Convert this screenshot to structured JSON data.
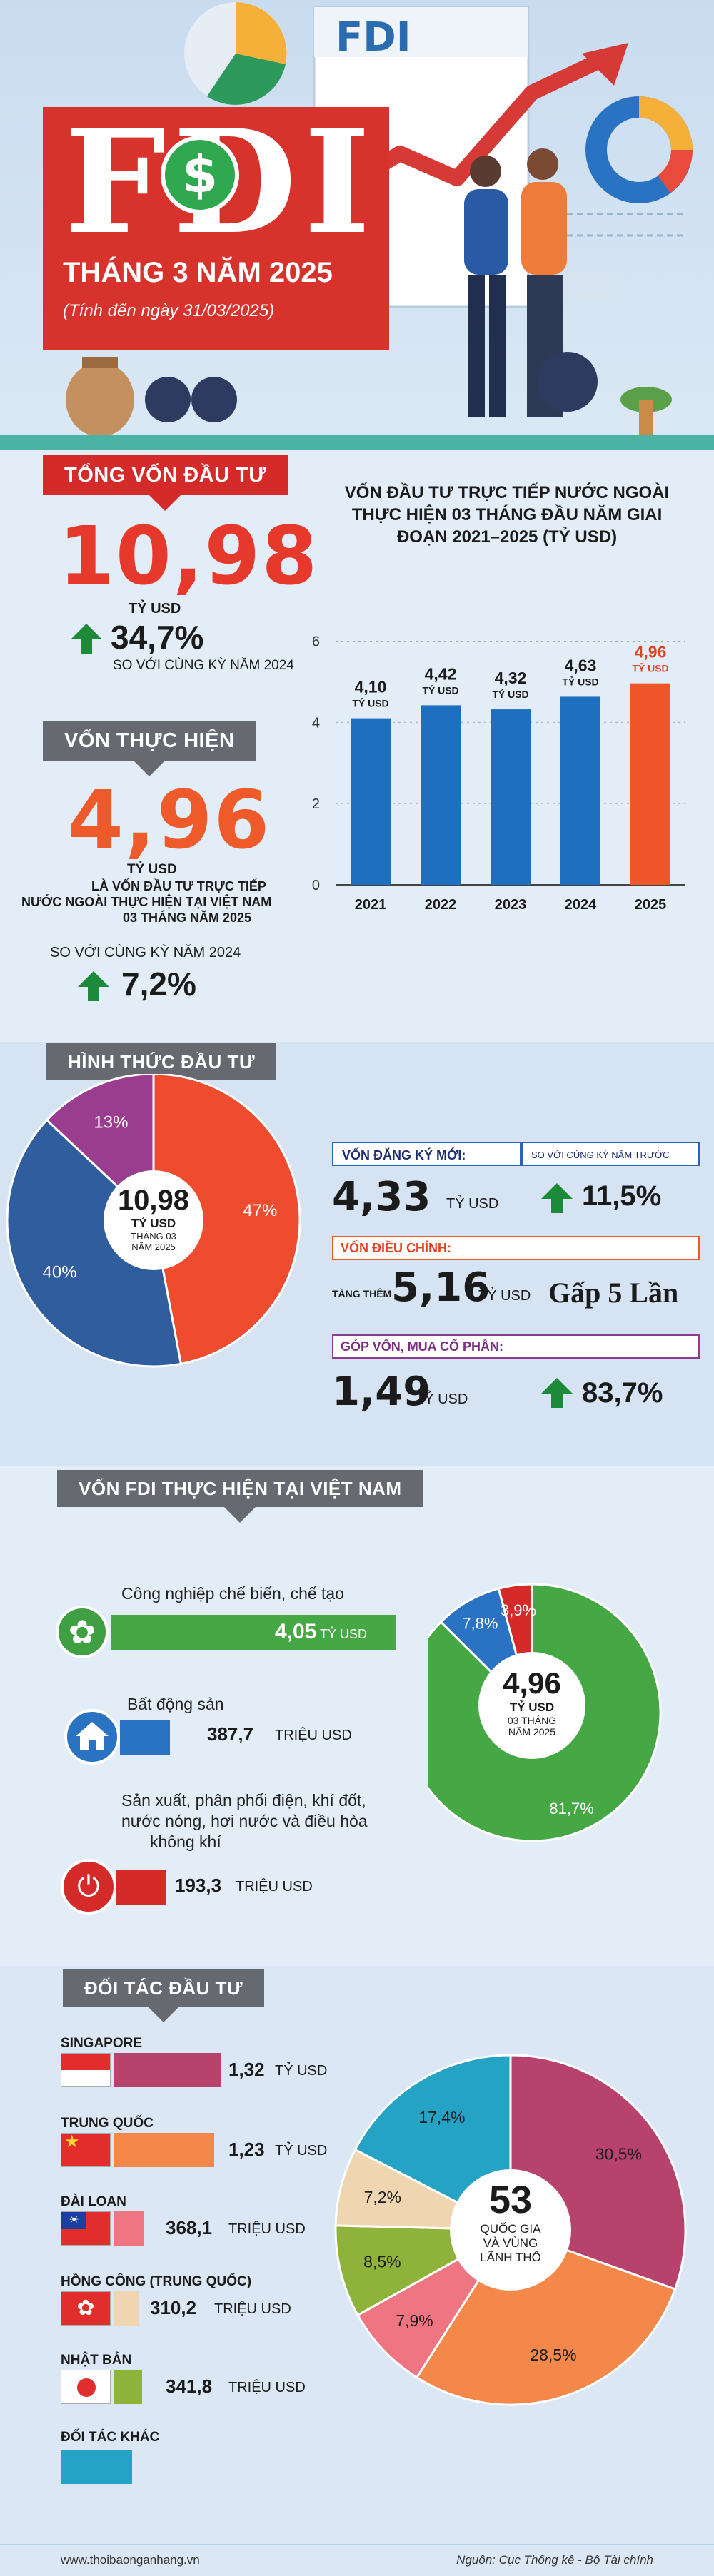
{
  "hero": {
    "title": "FDI",
    "subtitle": "THÁNG 3 NĂM 2025",
    "note": "(Tính đến ngày 31/03/2025)",
    "board_label": "FDI"
  },
  "total": {
    "heading": "TỔNG VỐN ĐẦU TƯ",
    "value": "10,98",
    "unit": "TỶ USD",
    "growth": "34,7%",
    "compare": "SO VỚI CÙNG KỲ NĂM 2024"
  },
  "disbursed": {
    "heading": "VỐN THỰC HIỆN",
    "value": "4,96",
    "unit": "TỶ USD",
    "desc1": "LÀ VỐN ĐẦU TƯ TRỰC TIẾP",
    "desc2": "NƯỚC NGOÀI THỰC HIỆN TẠI VIỆT NAM",
    "desc3": "03 THÁNG NĂM 2025",
    "compare": "SO VỚI CÙNG KỲ NĂM 2024",
    "growth": "7,2%"
  },
  "chart_data": [
    {
      "type": "bar",
      "title": "VỐN ĐẦU TƯ TRỰC TIẾP NƯỚC NGOÀI THỰC HIỆN 03 THÁNG ĐẦU NĂM GIAI ĐOẠN 2021–2025 (TỶ USD)",
      "categories": [
        "2021",
        "2022",
        "2023",
        "2024",
        "2025"
      ],
      "values": [
        4.1,
        4.42,
        4.32,
        4.63,
        4.96
      ],
      "value_labels": [
        "4,10",
        "4,42",
        "4,32",
        "4,63",
        "4,96"
      ],
      "value_unit": "TỶ USD",
      "yticks": [
        "0",
        "2",
        "4",
        "6"
      ],
      "colors": [
        "#1e6fc0",
        "#1e6fc0",
        "#1e6fc0",
        "#1e6fc0",
        "#f0562a"
      ]
    },
    {
      "type": "pie",
      "center_value": "10,98",
      "center_unit": "TỶ USD",
      "center_sub1": "THÁNG 03",
      "center_sub2": "NĂM 2025",
      "slices": [
        {
          "label": "47%",
          "value": 47,
          "color": "#ef4c2f"
        },
        {
          "label": "40%",
          "value": 40,
          "color": "#2f5d9e"
        },
        {
          "label": "13%",
          "value": 13,
          "color": "#9b3d8e"
        }
      ]
    },
    {
      "type": "pie",
      "center_value": "4,96",
      "center_unit": "TỶ USD",
      "center_sub1": "03 THÁNG",
      "center_sub2": "NĂM 2025",
      "slices": [
        {
          "label": "81,7%",
          "value": 81.7,
          "color": "#46a845"
        },
        {
          "label": "7,8%",
          "value": 7.8,
          "color": "#2a73c2"
        },
        {
          "label": "3,9%",
          "value": 3.9,
          "color": "#d42a2a"
        }
      ]
    },
    {
      "type": "pie",
      "center_value": "53",
      "center_sub1": "QUỐC GIA",
      "center_sub2": "VÀ VÙNG",
      "center_sub3": "LÃNH THỔ",
      "slices": [
        {
          "label": "30,5%",
          "value": 30.5,
          "color": "#b7426c"
        },
        {
          "label": "28,5%",
          "value": 28.5,
          "color": "#f4884a"
        },
        {
          "label": "7,9%",
          "value": 7.9,
          "color": "#f07583"
        },
        {
          "label": "8,5%",
          "value": 8.5,
          "color": "#8fb33a"
        },
        {
          "label": "7,2%",
          "value": 7.2,
          "color": "#efd6b0"
        },
        {
          "label": "17,4%",
          "value": 17.4,
          "color": "#24a3c4"
        }
      ]
    }
  ],
  "forms": {
    "heading": "HÌNH THỨC ĐẦU TƯ",
    "new_label": "VỐN ĐĂNG KÝ MỚI:",
    "compare_label": "SO VỚI CÙNG KỲ NĂM TRƯỚC",
    "new_value": "4,33",
    "new_unit": "TỶ USD",
    "new_growth": "11,5%",
    "adjust_label": "VỐN ĐIỀU CHỈNH:",
    "adjust_prefix": "TĂNG THÊM",
    "adjust_value": "5,16",
    "adjust_unit": "TỶ USD",
    "adjust_growth": "Gấp 5 Lần",
    "share_label": "GÓP VỐN, MUA CỔ PHẦN:",
    "share_value": "1,49",
    "share_unit": "TỶ USD",
    "share_growth": "83,7%"
  },
  "sectors": {
    "heading": "VỐN FDI THỰC HIỆN TẠI VIỆT NAM",
    "items": [
      {
        "name": "Công nghiệp chế biến, chế tạo",
        "value": "4,05",
        "unit": "TỶ USD"
      },
      {
        "name": "Bất động sản",
        "value": "387,7",
        "unit": "TRIỆU USD"
      },
      {
        "name_l1": "Sản xuất, phân phối điện, khí đốt,",
        "name_l2": "nước nóng, hơi nước và điều hòa",
        "name_l3": "không khí",
        "value": "193,3",
        "unit": "TRIỆU USD"
      }
    ]
  },
  "partners": {
    "heading": "ĐỐI TÁC ĐẦU TƯ",
    "items": [
      {
        "name": "SINGAPORE",
        "value": "1,32",
        "unit": "TỶ USD"
      },
      {
        "name": "TRUNG QUỐC",
        "value": "1,23",
        "unit": "TỶ USD"
      },
      {
        "name": "ĐÀI LOAN",
        "value": "368,1",
        "unit": "TRIỆU USD"
      },
      {
        "name": "HỒNG CÔNG (TRUNG QUỐC)",
        "value": "310,2",
        "unit": "TRIỆU USD"
      },
      {
        "name": "NHẬT BẢN",
        "value": "341,8",
        "unit": "TRIỆU USD"
      },
      {
        "name": "ĐỐI TÁC KHÁC",
        "value": "",
        "unit": ""
      }
    ]
  },
  "footer": {
    "site": "www.thoibaonganhang.vn",
    "source": "Nguồn: Cục Thống kê - Bộ Tài chính"
  }
}
